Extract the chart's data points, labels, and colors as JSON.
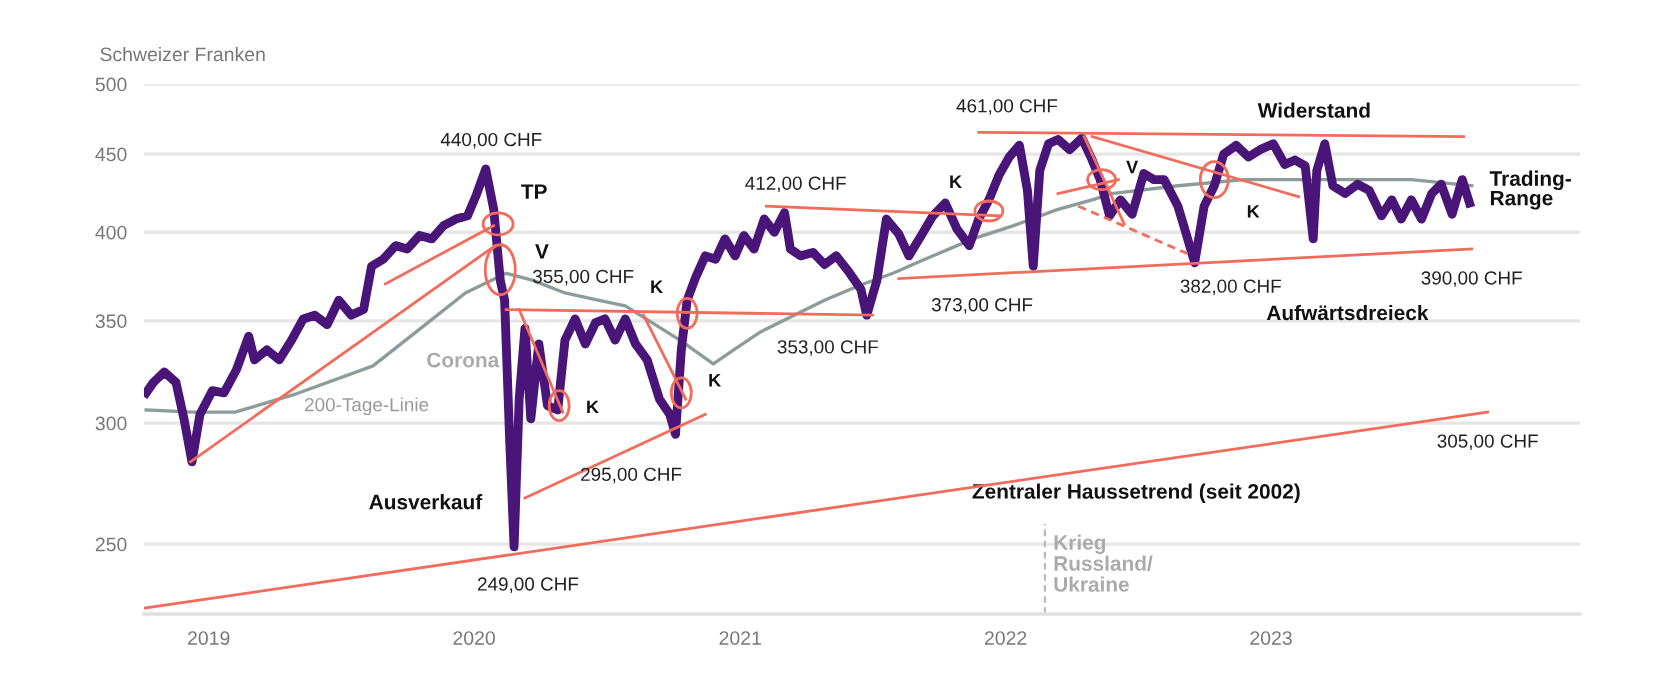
{
  "chart_data": {
    "type": "line",
    "ylabel": "Schweizer Franken",
    "log": "y",
    "ylim": [
      225,
      500
    ],
    "yticks": [
      250,
      300,
      350,
      400,
      450,
      500
    ],
    "xlim": [
      "2018-10-04",
      "2024-03-01"
    ],
    "xticks": [
      {
        "value": "2019-01-01",
        "label": "2019"
      },
      {
        "value": "2020-01-01",
        "label": "2020"
      },
      {
        "value": "2021-01-01",
        "label": "2021"
      },
      {
        "value": "2022-01-01",
        "label": "2022"
      },
      {
        "value": "2023-01-01",
        "label": "2023"
      }
    ],
    "grid": "y",
    "legend": false,
    "series": [
      {
        "color": "#4a1578",
        "x": [
          "2018-10-07",
          "2018-10-17",
          "2018-11-01",
          "2018-11-17",
          "2018-11-28",
          "2018-12-09",
          "2018-12-20",
          "2019-01-06",
          "2019-01-22",
          "2019-02-08",
          "2019-02-25",
          "2019-03-05",
          "2019-03-22",
          "2019-04-08",
          "2019-04-25",
          "2019-05-11",
          "2019-05-27",
          "2019-06-13",
          "2019-06-29",
          "2019-07-16",
          "2019-08-02",
          "2019-08-13",
          "2019-08-29",
          "2019-09-15",
          "2019-10-01",
          "2019-10-18",
          "2019-11-04",
          "2019-11-20",
          "2019-12-07",
          "2019-12-23",
          "2020-01-04",
          "2020-01-17",
          "2020-01-28",
          "2020-02-06",
          "2020-02-12",
          "2020-02-19",
          "2020-02-25",
          "2020-03-03",
          "2020-03-11",
          "2020-03-19",
          "2020-03-30",
          "2020-04-11",
          "2020-04-25",
          "2020-05-05",
          "2020-05-19",
          "2020-06-02",
          "2020-06-16",
          "2020-06-29",
          "2020-07-13",
          "2020-07-27",
          "2020-08-10",
          "2020-08-26",
          "2020-09-12",
          "2020-09-26",
          "2020-10-04",
          "2020-10-12",
          "2020-10-20",
          "2020-11-01",
          "2020-11-14",
          "2020-11-28",
          "2020-12-11",
          "2020-12-25",
          "2021-01-06",
          "2021-01-20",
          "2021-02-03",
          "2021-02-17",
          "2021-03-03",
          "2021-03-11",
          "2021-03-25",
          "2021-04-11",
          "2021-04-27",
          "2021-05-13",
          "2021-05-30",
          "2021-06-16",
          "2021-06-24",
          "2021-07-08",
          "2021-07-21",
          "2021-08-07",
          "2021-08-21",
          "2021-09-07",
          "2021-09-23",
          "2021-10-10",
          "2021-10-26",
          "2021-11-12",
          "2021-11-25",
          "2021-12-09",
          "2021-12-23",
          "2022-01-06",
          "2022-01-20",
          "2022-01-31",
          "2022-02-08",
          "2022-02-17",
          "2022-03-01",
          "2022-03-14",
          "2022-03-30",
          "2022-04-16",
          "2022-04-30",
          "2022-05-11",
          "2022-05-24",
          "2022-06-08",
          "2022-06-24",
          "2022-07-10",
          "2022-07-24",
          "2022-08-07",
          "2022-08-26",
          "2022-09-07",
          "2022-09-18",
          "2022-10-01",
          "2022-10-15",
          "2022-10-28",
          "2022-11-14",
          "2022-12-01",
          "2022-12-17",
          "2023-01-04",
          "2023-01-20",
          "2023-02-03",
          "2023-02-17",
          "2023-02-28",
          "2023-03-05",
          "2023-03-16",
          "2023-03-27",
          "2023-04-13",
          "2023-04-30",
          "2023-05-16",
          "2023-06-02",
          "2023-06-16",
          "2023-06-29",
          "2023-07-13",
          "2023-07-27",
          "2023-08-10",
          "2023-08-23",
          "2023-09-07",
          "2023-09-21",
          "2023-10-01"
        ],
        "values": [
          314,
          319,
          324,
          319,
          302,
          283,
          304,
          315,
          314,
          325,
          342,
          330,
          335,
          330,
          340,
          351,
          353,
          348,
          361,
          353,
          356,
          380,
          384,
          392,
          390,
          398,
          396,
          404,
          408,
          410,
          423,
          440,
          414,
          372,
          361,
          292,
          249,
          311,
          346,
          302,
          338,
          308,
          306,
          340,
          351,
          338,
          349,
          351,
          340,
          351,
          338,
          330,
          311,
          304,
          295,
          335,
          361,
          374,
          386,
          384,
          396,
          386,
          398,
          390,
          408,
          400,
          412,
          390,
          386,
          388,
          381,
          386,
          377,
          367,
          353,
          372,
          408,
          399,
          386,
          398,
          410,
          418,
          402,
          392,
          408,
          420,
          436,
          448,
          456,
          426,
          380,
          439,
          457,
          460,
          453,
          461,
          446,
          433,
          410,
          420,
          411,
          437,
          433,
          433,
          416,
          398,
          382,
          416,
          429,
          450,
          456,
          448,
          453,
          457,
          443,
          446,
          442,
          396,
          439,
          457,
          429,
          424,
          430,
          426,
          410,
          420,
          408,
          420,
          408,
          424,
          430,
          411,
          433,
          418
        ]
      },
      {
        "color": "#8c9c9c",
        "x": [
          "2018-10-07",
          "2018-12-11",
          "2019-02-06",
          "2019-04-27",
          "2019-08-15",
          "2019-10-26",
          "2019-12-20",
          "2020-02-14",
          "2020-03-22",
          "2020-05-05",
          "2020-06-21",
          "2020-07-27",
          "2020-10-10",
          "2020-11-25",
          "2020-12-23",
          "2021-01-28",
          "2021-04-27",
          "2021-06-13",
          "2021-07-30",
          "2021-09-12",
          "2021-11-17",
          "2022-01-12",
          "2022-03-14",
          "2022-04-30",
          "2022-05-27",
          "2022-08-26",
          "2022-11-25",
          "2023-04-11",
          "2023-07-13",
          "2023-10-04"
        ],
        "values": [
          306,
          305,
          305,
          313,
          327,
          348,
          365,
          376,
          372,
          365,
          361,
          358,
          340,
          328,
          335,
          344,
          361,
          369,
          376,
          384,
          396,
          404,
          414,
          420,
          424,
          429,
          433,
          433,
          433,
          429
        ]
      },
      {
        "color": "#f26b5b",
        "x": [
          "2018-12-07",
          "2020-01-30"
        ],
        "values": [
          283,
          392
        ]
      },
      {
        "color": "#f26b5b",
        "x": [
          "2019-09-01",
          "2020-01-28"
        ],
        "values": [
          370,
          404
        ]
      },
      {
        "color": "#f26b5b",
        "x": [
          "2020-02-14",
          "2021-07-02"
        ],
        "values": [
          356,
          353
        ]
      },
      {
        "color": "#f26b5b",
        "x": [
          "2020-03-03",
          "2020-05-02"
        ],
        "values": [
          356,
          305
        ]
      },
      {
        "color": "#f26b5b",
        "x": [
          "2020-08-21",
          "2020-10-18"
        ],
        "values": [
          353,
          311
        ]
      },
      {
        "color": "#f26b5b",
        "x": [
          "2020-03-11",
          "2020-11-14"
        ],
        "values": [
          268,
          304
        ]
      },
      {
        "color": "#f26b5b",
        "x": [
          "2021-02-06",
          "2021-12-23"
        ],
        "values": [
          416,
          410
        ]
      },
      {
        "color": "#f26b5b",
        "x": [
          "2021-08-07",
          "2023-10-04"
        ],
        "values": [
          373,
          390
        ]
      },
      {
        "color": "#f26b5b",
        "x": [
          "2021-11-25",
          "2023-09-23"
        ],
        "values": [
          465,
          462
        ]
      },
      {
        "color": "#f26b5b",
        "x": [
          "2022-04-30",
          "2023-02-08"
        ],
        "values": [
          462,
          422
        ]
      },
      {
        "color": "#f26b5b",
        "x": [
          "2022-04-19",
          "2022-06-13"
        ],
        "values": [
          462,
          405
        ]
      },
      {
        "color": "#f26b5b",
        "x": [
          "2022-03-14",
          "2022-06-05"
        ],
        "values": [
          424,
          433
        ]
      },
      {
        "color": "#f26b5b",
        "line_style": "dashed",
        "x": [
          "2022-04-11",
          "2022-09-15"
        ],
        "values": [
          416,
          386
        ]
      },
      {
        "color": "#f26b5b",
        "x": [
          "2018-10-04",
          "2023-10-26"
        ],
        "values": [
          227,
          305
        ]
      }
    ],
    "ref_lines": [
      {
        "axis": "x",
        "value": "2022-02-24",
        "label": "Krieg\nRussland/\nUkraine",
        "color": "#bbbbbb",
        "line_style": "dashed"
      }
    ],
    "annotations": [
      {
        "text": "440,00 CHF",
        "x": "2020-01-17",
        "y": 440
      },
      {
        "text": "TP",
        "x": "2020-02-03",
        "y": 405
      },
      {
        "text": "V",
        "x": "2020-02-06",
        "y": 378
      },
      {
        "text": "355,00 CHF",
        "x": "2020-05-30",
        "y": 355
      },
      {
        "text": "K",
        "x": "2020-04-27",
        "y": 308
      },
      {
        "text": "K",
        "x": "2020-10-20",
        "y": 354
      },
      {
        "text": "K",
        "x": "2020-10-12",
        "y": 314
      },
      {
        "text": "295,00 CHF",
        "x": "2020-10-04",
        "y": 295
      },
      {
        "text": "249,00 CHF",
        "x": "2020-02-25",
        "y": 249
      },
      "Corona",
      "200-Tage-Linie",
      "Ausverkauf",
      {
        "text": "412,00 CHF",
        "x": "2021-03-03",
        "y": 412
      },
      {
        "text": "353,00 CHF",
        "x": "2021-06-24",
        "y": 353
      },
      {
        "text": "K",
        "x": "2021-12-09",
        "y": 413
      },
      {
        "text": "373,00 CHF",
        "x": "2021-08-07",
        "y": 373
      },
      {
        "text": "461,00 CHF",
        "x": "2022-04-16",
        "y": 461
      },
      {
        "text": "V",
        "x": "2022-05-13",
        "y": 433
      },
      "Widerstand",
      {
        "text": "K",
        "x": "2022-10-15",
        "y": 433
      },
      {
        "text": "382,00 CHF",
        "x": "2022-09-18",
        "y": 382
      },
      "Aufwärtsdreieck",
      "Trading-\nRange",
      {
        "text": "390,00 CHF",
        "x": "2023-10-04",
        "y": 390
      },
      {
        "text": "305,00 CHF",
        "x": "2023-10-26",
        "y": 305
      },
      "Zentraler Haussetrend (seit 2002)"
    ]
  }
}
